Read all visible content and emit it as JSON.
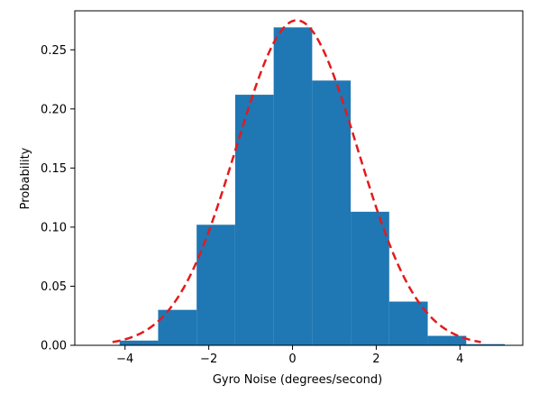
{
  "chart_data": {
    "type": "bar",
    "xlabel": "Gyro Noise (degrees/second)",
    "ylabel": "Probability",
    "xlim": [
      -5.2,
      5.5
    ],
    "ylim": [
      0,
      0.283
    ],
    "xticks": [
      -4,
      -2,
      0,
      2,
      4
    ],
    "xtick_labels": [
      "−4",
      "−2",
      "0",
      "2",
      "4"
    ],
    "yticks": [
      0.0,
      0.05,
      0.1,
      0.15,
      0.2,
      0.25
    ],
    "ytick_labels": [
      "0.00",
      "0.05",
      "0.10",
      "0.15",
      "0.20",
      "0.25"
    ],
    "bins": [
      {
        "x0": -4.13,
        "x1": -3.21,
        "value": 0.004
      },
      {
        "x0": -3.21,
        "x1": -2.29,
        "value": 0.03
      },
      {
        "x0": -2.29,
        "x1": -1.37,
        "value": 0.102
      },
      {
        "x0": -1.37,
        "x1": -0.45,
        "value": 0.212
      },
      {
        "x0": -0.45,
        "x1": 0.47,
        "value": 0.269
      },
      {
        "x0": 0.47,
        "x1": 1.39,
        "value": 0.224
      },
      {
        "x0": 1.39,
        "x1": 2.31,
        "value": 0.113
      },
      {
        "x0": 2.31,
        "x1": 3.23,
        "value": 0.037
      },
      {
        "x0": 3.23,
        "x1": 4.15,
        "value": 0.008
      },
      {
        "x0": 4.15,
        "x1": 5.07,
        "value": 0.001
      }
    ],
    "curve": {
      "style": "dashed",
      "mean": 0.1,
      "std": 1.45,
      "x_range": [
        -4.3,
        4.5
      ]
    },
    "grid": false,
    "colors": {
      "bar": "#1f77b4",
      "curve": "#e41a1c",
      "axis": "#000000",
      "background": "#ffffff"
    }
  }
}
